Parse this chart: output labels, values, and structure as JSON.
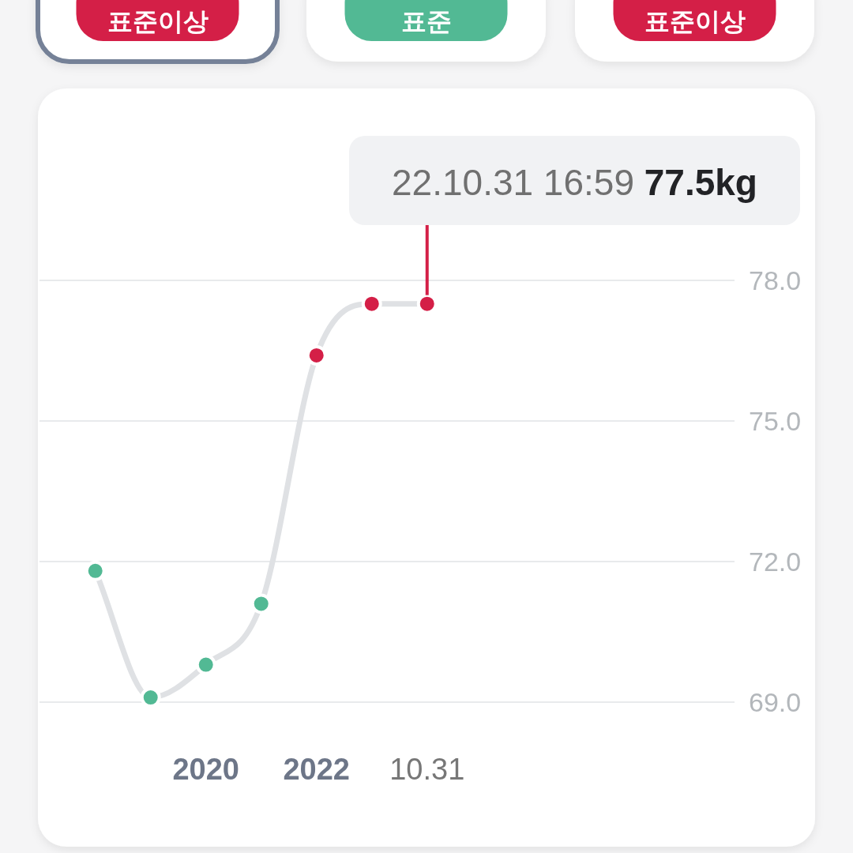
{
  "chart_data": [
    {
      "type": "other",
      "annotations": [
        "표준이상",
        "표준",
        "표준이상"
      ],
      "colors": [
        "#d41f47",
        "#52b994",
        "#d41f47"
      ]
    },
    {
      "type": "line",
      "categories": [
        null,
        null,
        "2020",
        null,
        "2022",
        null,
        "10.31",
        null,
        null,
        null,
        null,
        null
      ],
      "series": [
        {
          "color": "#dfe1e4",
          "colors": [
            "#52b994",
            "#52b994",
            "#52b994",
            "#52b994",
            "#d41f47",
            "#d41f47",
            "#d41f47",
            null,
            null,
            null,
            null,
            null
          ],
          "values": [
            71.8,
            69.1,
            69.8,
            71.1,
            76.4,
            77.5,
            77.5,
            null,
            null,
            null,
            null,
            null
          ]
        }
      ],
      "ylim": [
        69,
        78
      ],
      "yticks": [
        {
          "value": 69,
          "label": "69.0"
        },
        {
          "value": 72,
          "label": "72.0"
        },
        {
          "value": 75,
          "label": "75.0"
        },
        {
          "value": 78,
          "label": "78.0"
        }
      ],
      "grid": "y",
      "marker": "circle",
      "annotations": [
        {
          "text": "22.10.31 16:59 77.5kg",
          "x": "10.31",
          "y": 77.5
        }
      ]
    }
  ]
}
